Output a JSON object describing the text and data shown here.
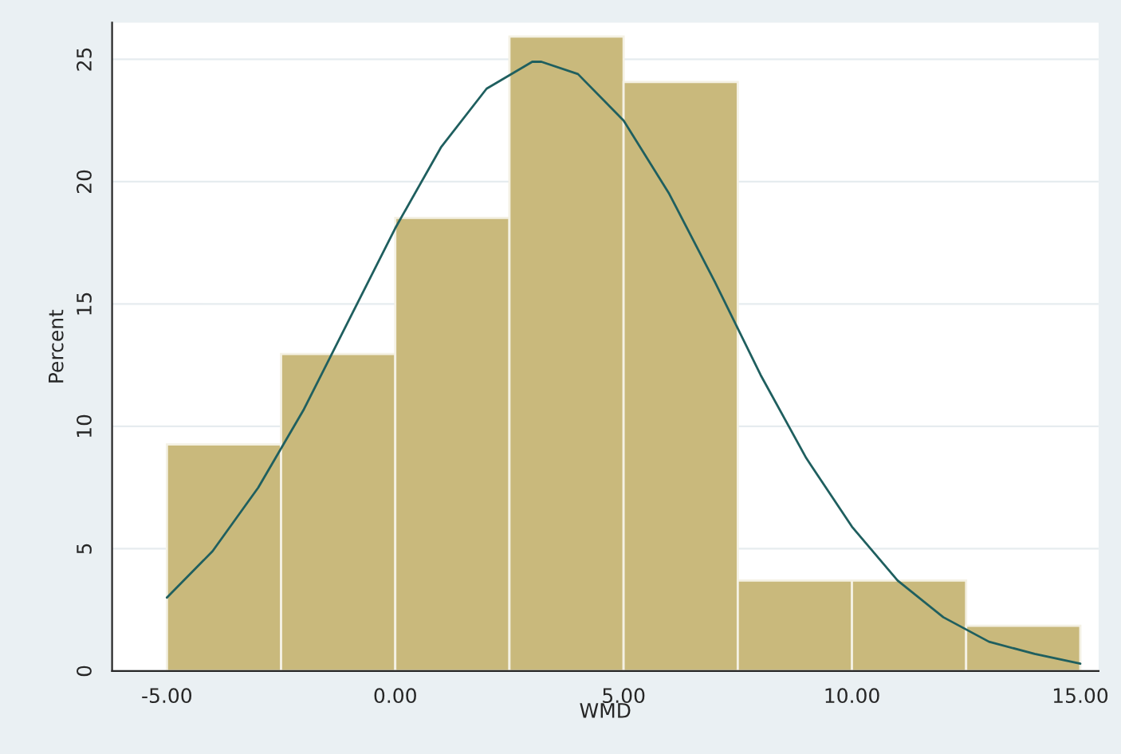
{
  "chart_data": {
    "type": "histogram",
    "xlabel": "WMD",
    "ylabel": "Percent",
    "bins": [
      -5,
      -2.5,
      0,
      2.5,
      5,
      7.5,
      10,
      12.5,
      15
    ],
    "values": [
      9.26,
      12.96,
      18.52,
      25.93,
      24.07,
      3.7,
      3.7,
      1.85
    ],
    "color": "#c9b97c",
    "series": [
      {
        "type": "line",
        "color": "#1f5f5f",
        "x": [
          -5,
          -4,
          -3,
          -2,
          -1,
          0,
          1,
          2,
          3,
          3.2,
          4,
          5,
          6,
          7,
          8,
          9,
          10,
          11,
          12,
          13,
          14,
          15
        ],
        "values": [
          3.0,
          4.9,
          7.5,
          10.7,
          14.4,
          18.1,
          21.4,
          23.8,
          24.9,
          24.9,
          24.4,
          22.5,
          19.5,
          15.9,
          12.1,
          8.7,
          5.9,
          3.7,
          2.2,
          1.2,
          0.7,
          0.3
        ]
      }
    ],
    "xlim": [
      -6.2,
      15.4
    ],
    "ylim": [
      0,
      26.5
    ],
    "xticks": [
      {
        "value": -5,
        "label": "-5.00"
      },
      {
        "value": 0,
        "label": "0.00"
      },
      {
        "value": 5,
        "label": "5.00"
      },
      {
        "value": 10,
        "label": "10.00"
      },
      {
        "value": 15,
        "label": "15.00"
      }
    ],
    "yticks": [
      0,
      5,
      10,
      15,
      20,
      25
    ],
    "grid": "y"
  }
}
